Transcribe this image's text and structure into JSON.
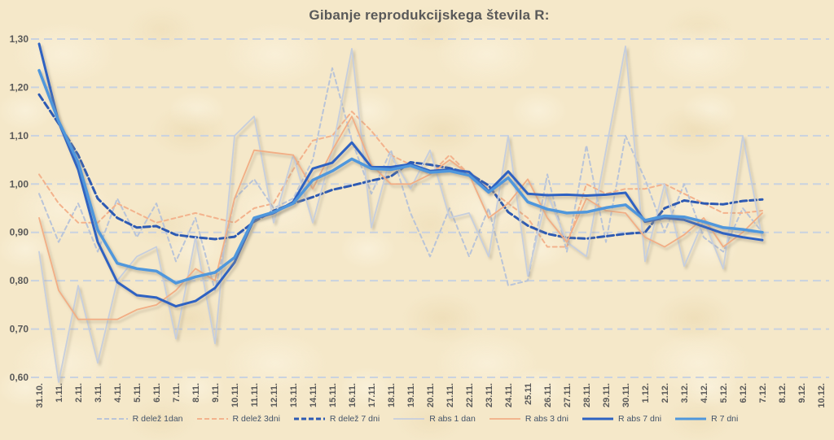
{
  "title": "Gibanje reprodukcijskega števila R:",
  "colors": {
    "background": "#f5e8c9",
    "grid": "#c9d2e0",
    "title_text": "#595959",
    "axis_text": "#595959",
    "legend_text": "#44546a"
  },
  "chart_data": {
    "type": "line",
    "title": "Gibanje reprodukcijskega števila R:",
    "xlabel": "",
    "ylabel": "",
    "ylim": [
      0.6,
      1.3
    ],
    "grid": "horizontal-dashed",
    "legend_position": "bottom",
    "categories": [
      "31.10.",
      "1.11.",
      "2.11.",
      "3.11.",
      "4.11.",
      "5.11.",
      "6.11.",
      "7.11.",
      "8.11.",
      "9.11.",
      "10.11.",
      "11.11.",
      "12.11.",
      "13.11.",
      "14.11.",
      "15.11.",
      "16.11.",
      "17.11.",
      "18.11.",
      "19.11.",
      "20.11.",
      "21.11.",
      "22.11.",
      "23.11.",
      "24.11.",
      "25.11",
      "26.11.",
      "27.11.",
      "28.11.",
      "29.11.",
      "30.11.",
      "1.12.",
      "2.12.",
      "3.12.",
      "4.12.",
      "5.12.",
      "6.12.",
      "7.12.",
      "8.12.",
      "9.12.",
      "10.12."
    ],
    "y_ticks": [
      {
        "label": "1,30",
        "value": 1.3
      },
      {
        "label": "1,20",
        "value": 1.2
      },
      {
        "label": "1,10",
        "value": 1.1
      },
      {
        "label": "1,00",
        "value": 1.0
      },
      {
        "label": "0,90",
        "value": 0.9
      },
      {
        "label": "0,80",
        "value": 0.8
      },
      {
        "label": "0,70",
        "value": 0.7
      },
      {
        "label": "0,60",
        "value": 0.6
      }
    ],
    "series": [
      {
        "name": "R delež 1dan",
        "color": "#b9c4d8",
        "dash": "5 4",
        "width": 2,
        "shadow": false,
        "values": [
          0.98,
          0.88,
          0.96,
          0.86,
          0.97,
          0.89,
          0.96,
          0.84,
          0.93,
          0.78,
          0.97,
          1.01,
          0.95,
          0.97,
          1.05,
          1.24,
          1.09,
          0.98,
          1.07,
          0.94,
          0.85,
          0.95,
          0.85,
          0.95,
          0.79,
          0.8,
          1.02,
          0.86,
          1.08,
          0.88,
          1.1,
          1.01,
          0.9,
          1.0,
          0.89,
          0.86,
          0.95,
          0.9,
          null,
          null,
          null
        ]
      },
      {
        "name": "R delež 3dni",
        "color": "#f3b28c",
        "dash": "5 4",
        "width": 2,
        "shadow": false,
        "values": [
          1.02,
          0.96,
          0.92,
          0.92,
          0.96,
          0.94,
          0.92,
          0.93,
          0.94,
          0.93,
          0.92,
          0.95,
          0.96,
          1.03,
          1.09,
          1.1,
          1.15,
          1.11,
          1.06,
          1.04,
          1.02,
          1.06,
          1.02,
          0.99,
          0.96,
          0.93,
          0.87,
          0.87,
          1.0,
          0.98,
          0.99,
          0.99,
          1.0,
          0.98,
          0.96,
          0.94,
          0.94,
          0.945,
          null,
          null,
          null
        ]
      },
      {
        "name": "R delež 7 dni",
        "color": "#2d5ab3",
        "dash": "8 4",
        "width": 3,
        "shadow": false,
        "values": [
          1.185,
          1.125,
          1.06,
          0.97,
          0.93,
          0.91,
          0.913,
          0.895,
          0.89,
          0.886,
          0.891,
          0.922,
          0.945,
          0.96,
          0.973,
          0.988,
          0.997,
          1.007,
          1.016,
          1.045,
          1.04,
          1.033,
          1.022,
          0.997,
          0.942,
          0.914,
          0.897,
          0.889,
          0.887,
          0.892,
          0.897,
          0.9,
          0.95,
          0.966,
          0.96,
          0.958,
          0.965,
          0.968,
          null,
          null,
          null
        ]
      },
      {
        "name": "R abs 1 dan",
        "color": "#c6cedd",
        "dash": null,
        "width": 1.8,
        "shadow": true,
        "values": [
          0.86,
          0.59,
          0.79,
          0.63,
          0.8,
          0.85,
          0.87,
          0.68,
          0.89,
          0.67,
          1.1,
          1.14,
          0.92,
          1.06,
          0.92,
          1.07,
          1.28,
          0.91,
          1.06,
          0.99,
          1.07,
          0.93,
          0.94,
          0.85,
          1.1,
          0.81,
          0.98,
          0.88,
          0.85,
          1.07,
          1.285,
          0.84,
          1.0,
          0.83,
          0.925,
          0.825,
          1.1,
          0.886,
          null,
          null,
          null
        ]
      },
      {
        "name": "R abs 3 dni",
        "color": "#f2ae85",
        "dash": null,
        "width": 1.8,
        "shadow": true,
        "values": [
          0.93,
          0.78,
          0.72,
          0.72,
          0.72,
          0.74,
          0.75,
          0.78,
          0.825,
          0.8,
          0.97,
          1.07,
          1.065,
          1.06,
          0.99,
          1.07,
          1.14,
          1.04,
          1.0,
          1.0,
          1.02,
          1.05,
          1.02,
          0.93,
          0.96,
          1.01,
          0.93,
          0.88,
          0.97,
          0.945,
          0.94,
          0.89,
          0.87,
          0.895,
          0.93,
          0.87,
          0.9,
          0.94,
          null,
          null,
          null
        ]
      },
      {
        "name": "R abs 7 dni",
        "color": "#2d62c2",
        "dash": null,
        "width": 3,
        "shadow": true,
        "values": [
          1.29,
          1.128,
          1.03,
          0.88,
          0.797,
          0.77,
          0.765,
          0.747,
          0.758,
          0.785,
          0.838,
          0.928,
          0.94,
          0.963,
          1.032,
          1.044,
          1.086,
          1.035,
          1.035,
          1.041,
          1.027,
          1.03,
          1.025,
          0.985,
          1.026,
          0.98,
          0.977,
          0.978,
          0.976,
          0.978,
          0.982,
          0.922,
          0.93,
          0.926,
          0.912,
          0.898,
          0.89,
          0.884,
          null,
          null,
          null
        ]
      },
      {
        "name": "R 7 dni",
        "color": "#4f97dc",
        "dash": null,
        "width": 3.5,
        "shadow": true,
        "values": [
          1.235,
          1.13,
          1.045,
          0.905,
          0.836,
          0.825,
          0.82,
          0.795,
          0.808,
          0.817,
          0.848,
          0.93,
          0.942,
          0.96,
          1.008,
          1.027,
          1.052,
          1.032,
          1.03,
          1.038,
          1.024,
          1.027,
          1.018,
          0.983,
          1.013,
          0.963,
          0.948,
          0.94,
          0.942,
          0.951,
          0.957,
          0.925,
          0.934,
          0.932,
          0.922,
          0.91,
          0.906,
          0.9,
          null,
          null,
          null
        ]
      }
    ]
  }
}
